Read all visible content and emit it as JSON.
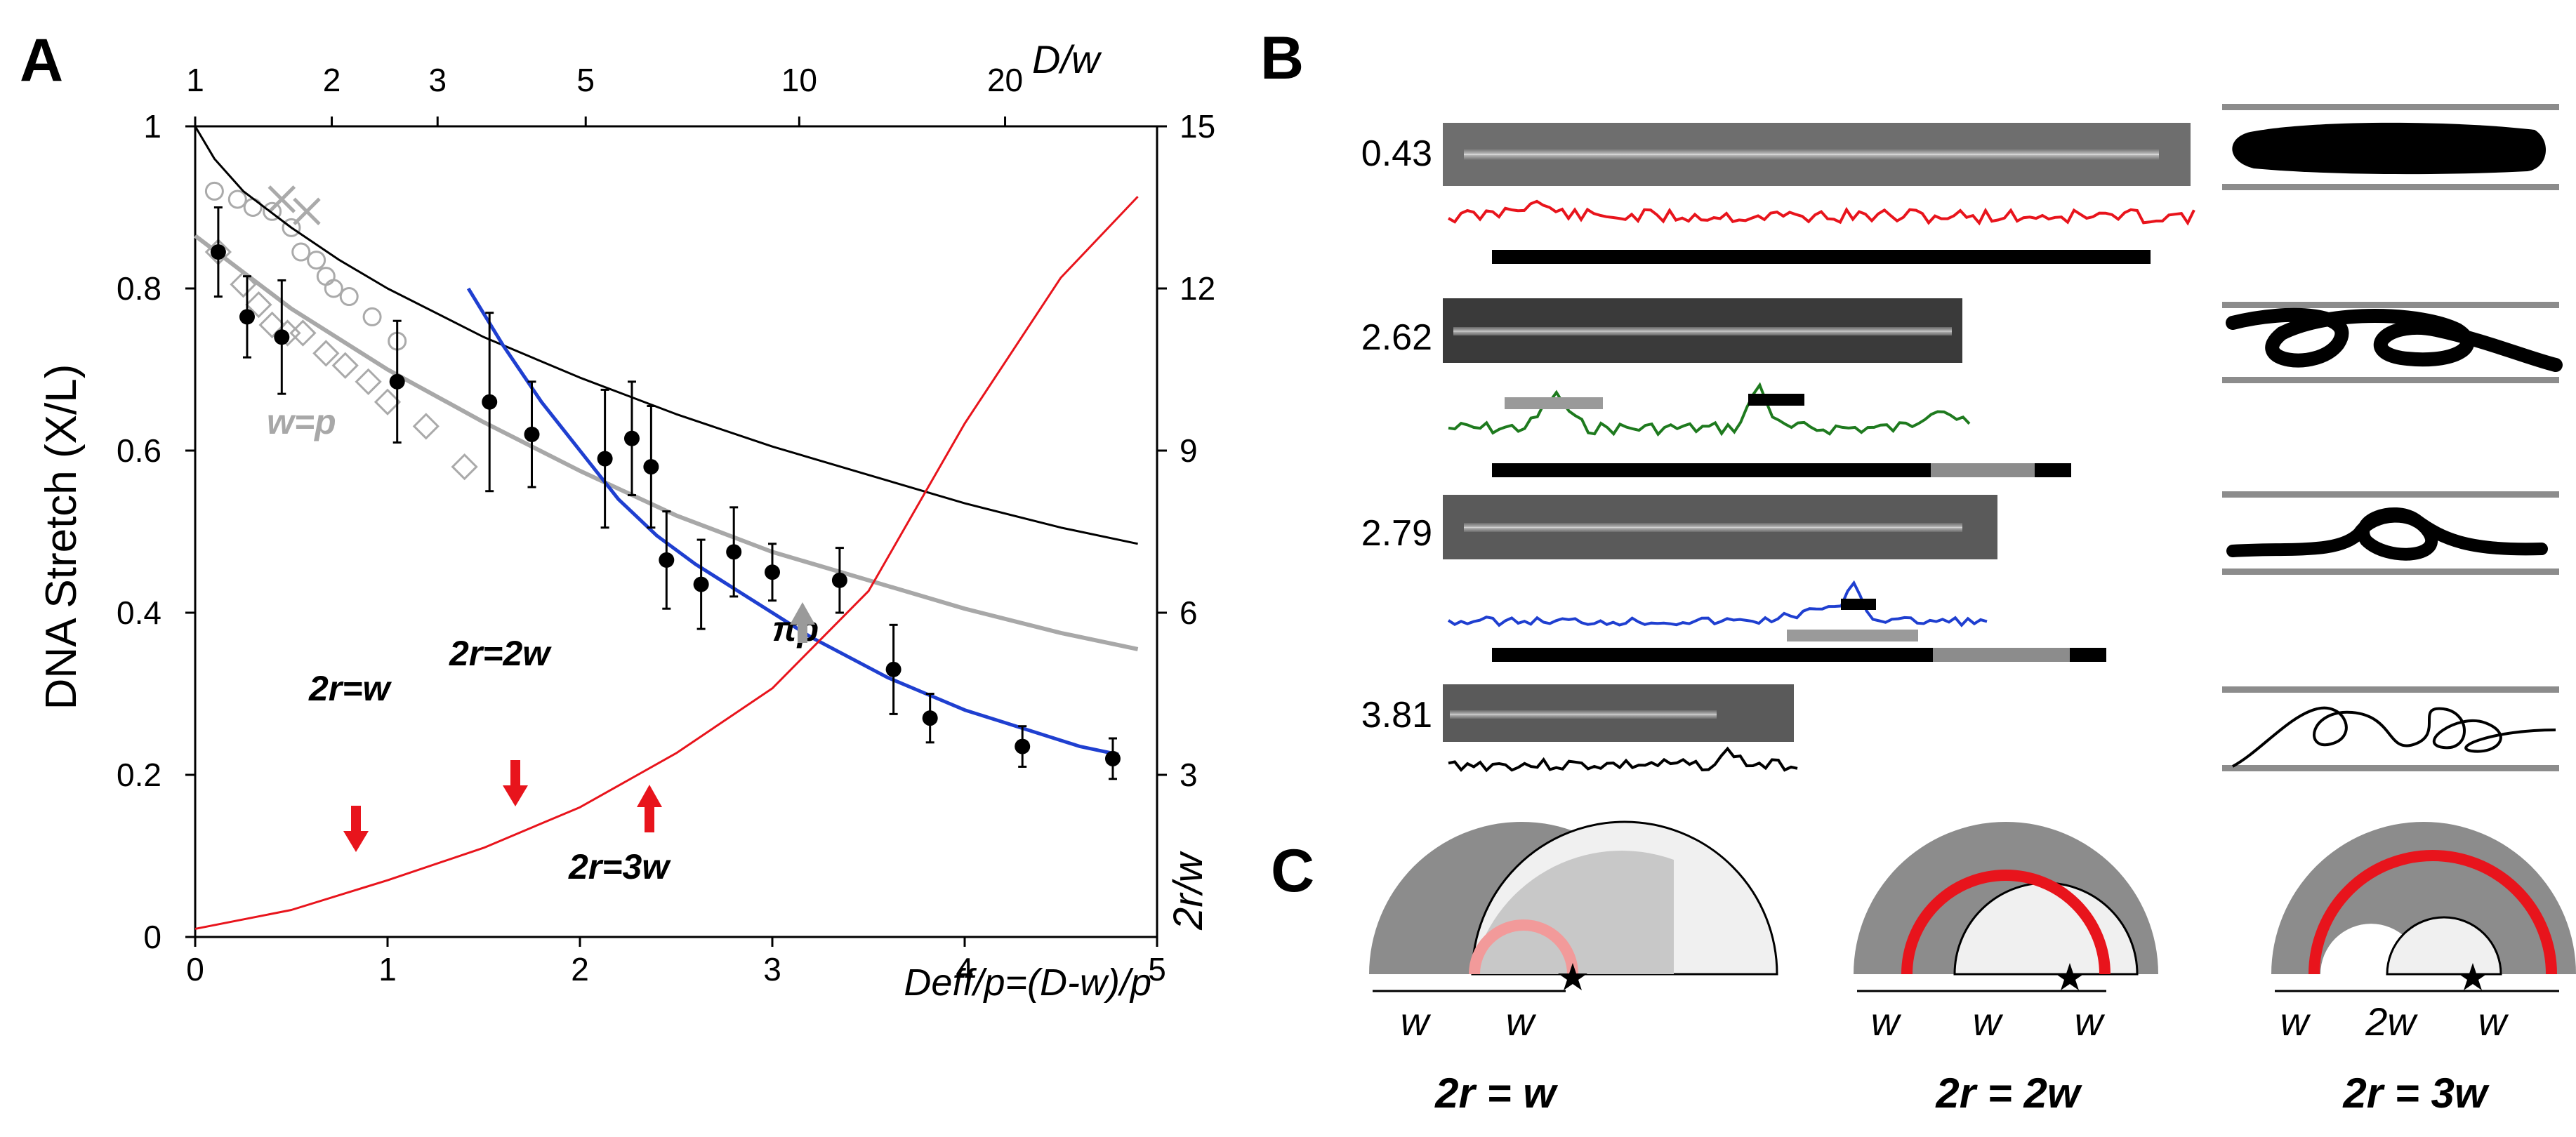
{
  "panel_labels": {
    "a": "A",
    "b": "B",
    "c": "C"
  },
  "chart_data": {
    "type": "scatter",
    "xlabel": "Deff/p=(D-w)/p",
    "ylabel": "DNA Stretch (X/L)",
    "y2label": "2r/w",
    "top_axis_label": "D/w",
    "xlim": [
      0,
      5
    ],
    "ylim": [
      0,
      1
    ],
    "y2lim": [
      0,
      15
    ],
    "x_ticks": [
      0,
      1,
      2,
      3,
      4,
      5
    ],
    "y_ticks": [
      0,
      0.2,
      0.4,
      0.6,
      0.8,
      1
    ],
    "y_tick_labels": [
      "0",
      "0.2",
      "0.4",
      "0.6",
      "0.8",
      "1"
    ],
    "y2_ticks": [
      3,
      6,
      9,
      12,
      15
    ],
    "top_ticks": [
      1,
      2,
      3,
      5,
      10,
      20
    ],
    "top_ticks_x": [
      0,
      0.71,
      1.26,
      2.03,
      3.14,
      4.21
    ],
    "series": [
      {
        "name": "Experiment",
        "color": "#000000",
        "kind": "points",
        "x": [
          0.12,
          0.27,
          0.45,
          1.05,
          1.53,
          1.75,
          2.13,
          2.27,
          2.37,
          2.45,
          2.63,
          2.8,
          3.0,
          3.35,
          3.63,
          3.82,
          4.3,
          4.77
        ],
        "y": [
          0.845,
          0.765,
          0.74,
          0.685,
          0.66,
          0.62,
          0.59,
          0.615,
          0.58,
          0.465,
          0.435,
          0.475,
          0.45,
          0.44,
          0.33,
          0.27,
          0.235,
          0.22
        ],
        "err": [
          0.055,
          0.05,
          0.07,
          0.075,
          0.11,
          0.065,
          0.085,
          0.07,
          0.075,
          0.06,
          0.055,
          0.055,
          0.035,
          0.04,
          0.055,
          0.03,
          0.025,
          0.025
        ]
      },
      {
        "name": "Simulation circles",
        "color": "#aaaaaa",
        "kind": "circles",
        "x": [
          0.1,
          0.22,
          0.3,
          0.4,
          0.5,
          0.55,
          0.63,
          0.68,
          0.72,
          0.8,
          0.92,
          1.05
        ],
        "y": [
          0.92,
          0.91,
          0.9,
          0.895,
          0.875,
          0.845,
          0.835,
          0.815,
          0.8,
          0.79,
          0.765,
          0.735
        ]
      },
      {
        "name": "Simulation diamonds",
        "color": "#aaaaaa",
        "kind": "diamonds",
        "x": [
          0.12,
          0.25,
          0.33,
          0.4,
          0.48,
          0.56,
          0.68,
          0.78,
          0.9,
          1.0,
          1.2,
          1.4
        ],
        "y": [
          0.845,
          0.805,
          0.78,
          0.755,
          0.745,
          0.745,
          0.72,
          0.705,
          0.685,
          0.66,
          0.63,
          0.58
        ]
      },
      {
        "name": "Simulation crosses",
        "color": "#aaaaaa",
        "kind": "crosses",
        "x": [
          0.45,
          0.58
        ],
        "y": [
          0.91,
          0.895
        ]
      },
      {
        "name": "Upper theory",
        "color": "#000000",
        "kind": "line",
        "x": [
          0,
          0.1,
          0.25,
          0.5,
          0.75,
          1,
          1.5,
          2,
          2.5,
          3,
          3.5,
          4,
          4.5,
          4.9
        ],
        "y": [
          1.0,
          0.96,
          0.92,
          0.875,
          0.835,
          0.8,
          0.74,
          0.69,
          0.645,
          0.605,
          0.57,
          0.535,
          0.505,
          0.485
        ]
      },
      {
        "name": "w=p",
        "color": "#a8a8a8",
        "kind": "line",
        "x": [
          0,
          0.5,
          1,
          1.5,
          2,
          2.5,
          3,
          3.5,
          4,
          4.5,
          4.9
        ],
        "y": [
          0.865,
          0.775,
          0.7,
          0.635,
          0.575,
          0.52,
          0.475,
          0.44,
          0.405,
          0.375,
          0.355
        ]
      },
      {
        "name": "Blue fit",
        "color": "#1f3fd0",
        "kind": "line",
        "x": [
          1.42,
          1.6,
          1.8,
          2.0,
          2.2,
          2.4,
          2.6,
          2.8,
          3.0,
          3.2,
          3.4,
          3.6,
          3.8,
          4.0,
          4.2,
          4.4,
          4.6,
          4.8
        ],
        "y": [
          0.8,
          0.73,
          0.66,
          0.6,
          0.54,
          0.495,
          0.46,
          0.43,
          0.4,
          0.37,
          0.345,
          0.32,
          0.3,
          0.28,
          0.265,
          0.25,
          0.235,
          0.225
        ]
      },
      {
        "name": "2r/w (right axis)",
        "color": "#e8141c",
        "kind": "line2",
        "x": [
          0,
          0.5,
          1,
          1.5,
          2,
          2.5,
          3,
          3.5,
          4,
          4.5,
          4.9
        ],
        "y2": [
          0.15,
          0.5,
          1.05,
          1.65,
          2.4,
          3.4,
          4.6,
          6.4,
          9.5,
          12.2,
          13.7
        ]
      }
    ],
    "annotations": {
      "w_eq_p": "w=p",
      "pi_p": "πp",
      "r1": "2r=w",
      "r2": "2r=2w",
      "r3": "2r=3w"
    }
  },
  "panel_b": {
    "rows": [
      {
        "value": "0.43",
        "trace_color": "#e8141c"
      },
      {
        "value": "2.62",
        "trace_color": "#1e7a1e"
      },
      {
        "value": "2.79",
        "trace_color": "#1f3fd0"
      },
      {
        "value": "3.81",
        "trace_color": "#000000"
      }
    ]
  },
  "panel_c": {
    "items": [
      {
        "caption": "2r = w",
        "labels": [
          "w",
          "w"
        ]
      },
      {
        "caption": "2r = 2w",
        "labels": [
          "w",
          "w",
          "w"
        ]
      },
      {
        "caption": "2r = 3w",
        "labels": [
          "w",
          "2w",
          "w"
        ]
      }
    ]
  }
}
